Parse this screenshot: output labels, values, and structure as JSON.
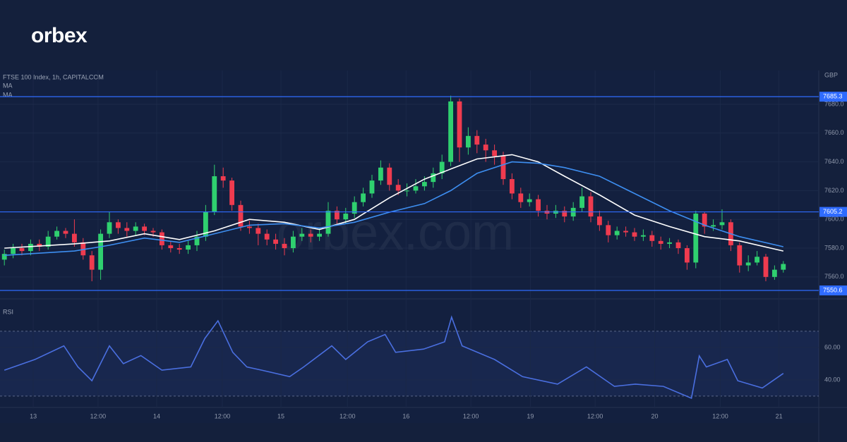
{
  "brand": {
    "logo": "orbex",
    "watermark": "orbex.com"
  },
  "chart_data": [
    {
      "type": "candlestick",
      "title": "FTSE 100 Index, 1h, CAPITALCOM",
      "currency": "GBP",
      "xlim": [
        -0.5,
        93.05
      ],
      "ylim": [
        7545.7,
        7703.5
      ],
      "yticks": [
        {
          "value": 7560,
          "label": "7560.0"
        },
        {
          "value": 7580,
          "label": "7580.0"
        },
        {
          "value": 7600,
          "label": "7600.0"
        },
        {
          "value": 7620,
          "label": "7620.0"
        },
        {
          "value": 7640,
          "label": "7640.0"
        },
        {
          "value": 7660,
          "label": "7660.0"
        },
        {
          "value": 7680,
          "label": "7680.0"
        }
      ],
      "up_color": "#2fd06f",
      "down_color": "#ef3b4f",
      "open": [
        7572,
        7576,
        7580,
        7578,
        7583,
        7581,
        7588,
        7592,
        7590,
        7584,
        7575,
        7565,
        7590,
        7598,
        7594,
        7592,
        7595,
        7592,
        7591,
        7582,
        7580,
        7579,
        7582,
        7588,
        7605,
        7630,
        7627,
        7610,
        7595,
        7594,
        7590,
        7586,
        7583,
        7580,
        7588,
        7590,
        7588,
        7590,
        7606,
        7600,
        7604,
        7612,
        7618,
        7627,
        7636,
        7624,
        7620,
        7620,
        7623,
        7626,
        7632,
        7640,
        7682,
        7650,
        7658,
        7652,
        7648,
        7644,
        7628,
        7618,
        7612,
        7614,
        7606,
        7604,
        7606,
        7602,
        7608,
        7616,
        7602,
        7596,
        7589,
        7592,
        7591,
        7588,
        7589,
        7585,
        7583,
        7584,
        7580,
        7570,
        7604,
        7595,
        7596,
        7598,
        7582,
        7568,
        7570,
        7574,
        7560,
        7565
      ],
      "high": [
        7579,
        7583,
        7583,
        7586,
        7586,
        7592,
        7595,
        7594,
        7600,
        7587,
        7578,
        7593,
        7605,
        7600,
        7598,
        7598,
        7597,
        7594,
        7593,
        7585,
        7583,
        7585,
        7592,
        7610,
        7638,
        7636,
        7629,
        7613,
        7599,
        7597,
        7593,
        7590,
        7587,
        7592,
        7594,
        7593,
        7594,
        7612,
        7609,
        7608,
        7616,
        7622,
        7631,
        7641,
        7639,
        7628,
        7625,
        7628,
        7630,
        7636,
        7645,
        7686,
        7684,
        7664,
        7662,
        7656,
        7652,
        7647,
        7632,
        7622,
        7618,
        7617,
        7610,
        7610,
        7609,
        7612,
        7622,
        7619,
        7606,
        7599,
        7595,
        7595,
        7594,
        7593,
        7592,
        7588,
        7587,
        7586,
        7582,
        7606,
        7605,
        7600,
        7607,
        7600,
        7584,
        7575,
        7578,
        7576,
        7568,
        7571
      ],
      "low": [
        7568,
        7573,
        7575,
        7575,
        7578,
        7579,
        7586,
        7587,
        7581,
        7572,
        7557,
        7558,
        7587,
        7590,
        7588,
        7589,
        7589,
        7588,
        7579,
        7577,
        7576,
        7576,
        7578,
        7585,
        7603,
        7622,
        7606,
        7592,
        7590,
        7582,
        7582,
        7579,
        7575,
        7577,
        7585,
        7584,
        7585,
        7588,
        7597,
        7597,
        7601,
        7609,
        7615,
        7624,
        7620,
        7617,
        7616,
        7618,
        7620,
        7622,
        7628,
        7637,
        7640,
        7645,
        7646,
        7640,
        7638,
        7624,
        7614,
        7608,
        7609,
        7602,
        7600,
        7601,
        7598,
        7599,
        7605,
        7598,
        7592,
        7584,
        7586,
        7588,
        7585,
        7585,
        7581,
        7579,
        7580,
        7576,
        7565,
        7566,
        7590,
        7592,
        7593,
        7578,
        7563,
        7564,
        7568,
        7557,
        7558,
        7563
      ],
      "close": [
        7576,
        7580,
        7578,
        7583,
        7581,
        7588,
        7592,
        7590,
        7584,
        7575,
        7565,
        7590,
        7598,
        7594,
        7592,
        7595,
        7592,
        7591,
        7582,
        7580,
        7579,
        7582,
        7588,
        7605,
        7630,
        7627,
        7610,
        7595,
        7594,
        7590,
        7586,
        7583,
        7580,
        7588,
        7590,
        7588,
        7590,
        7606,
        7600,
        7604,
        7612,
        7618,
        7627,
        7636,
        7624,
        7620,
        7620,
        7623,
        7626,
        7632,
        7640,
        7682,
        7650,
        7658,
        7652,
        7648,
        7644,
        7628,
        7618,
        7612,
        7614,
        7606,
        7604,
        7606,
        7602,
        7608,
        7616,
        7602,
        7596,
        7589,
        7592,
        7591,
        7588,
        7589,
        7585,
        7583,
        7584,
        7580,
        7570,
        7604,
        7595,
        7596,
        7598,
        7582,
        7568,
        7570,
        7574,
        7560,
        7565,
        7569
      ],
      "series": [
        {
          "name": "MA",
          "color": "#ffffff",
          "x": [
            0,
            8,
            12,
            16,
            20,
            24,
            28,
            32,
            36,
            40,
            44,
            48,
            51,
            54,
            58,
            61,
            64,
            68,
            72,
            76,
            80,
            84,
            89
          ],
          "values": [
            7580,
            7583,
            7585,
            7590,
            7586,
            7592,
            7600,
            7598,
            7593,
            7600,
            7615,
            7628,
            7635,
            7642,
            7645,
            7640,
            7630,
            7617,
            7603,
            7595,
            7588,
            7585,
            7578
          ]
        },
        {
          "name": "MA",
          "color": "#3d8ef0",
          "x": [
            0,
            8,
            12,
            16,
            20,
            24,
            28,
            32,
            36,
            40,
            44,
            48,
            51,
            54,
            58,
            61,
            64,
            68,
            72,
            76,
            80,
            84,
            89
          ],
          "values": [
            7575,
            7578,
            7582,
            7587,
            7584,
            7590,
            7596,
            7597,
            7594,
            7598,
            7605,
            7611,
            7620,
            7632,
            7640,
            7639,
            7636,
            7630,
            7618,
            7606,
            7596,
            7588,
            7581
          ]
        }
      ],
      "levels": [
        7685.3,
        7605.2,
        7550.6
      ],
      "level_color": "#2f6bff"
    },
    {
      "type": "line",
      "title": "RSI",
      "xlim": [
        -0.5,
        93.05
      ],
      "ylim": [
        23,
        86.5
      ],
      "yticks": [
        {
          "value": 40,
          "label": "40.00"
        },
        {
          "value": 60,
          "label": "60.00"
        }
      ],
      "bands": [
        30,
        70
      ],
      "xticks": [
        {
          "value": 3.3,
          "label": "13"
        },
        {
          "value": 10.7,
          "label": "12:00"
        },
        {
          "value": 17.4,
          "label": "14"
        },
        {
          "value": 24.9,
          "label": "12:00"
        },
        {
          "value": 31.6,
          "label": "15"
        },
        {
          "value": 39.2,
          "label": "12:00"
        },
        {
          "value": 45.9,
          "label": "16"
        },
        {
          "value": 53.3,
          "label": "12:00"
        },
        {
          "value": 60.1,
          "label": "19"
        },
        {
          "value": 67.5,
          "label": "12:00"
        },
        {
          "value": 74.3,
          "label": "20"
        },
        {
          "value": 81.8,
          "label": "12:00"
        },
        {
          "value": 88.5,
          "label": "21"
        }
      ],
      "series": [
        {
          "color": "#4a6fe0",
          "x": [
            0,
            3.5,
            6.8,
            8.4,
            10,
            12,
            13.6,
            15.6,
            18,
            21.3,
            22.9,
            24.4,
            26.1,
            27.7,
            29.4,
            32.6,
            34.2,
            37.4,
            39,
            41.5,
            43.5,
            44.7,
            47.9,
            50.3,
            51.1,
            52.3,
            56,
            59.2,
            63.2,
            66.5,
            69.7,
            72.1,
            75.3,
            78.5,
            79.4,
            80.2,
            82.6,
            83.8,
            86.6,
            89
          ],
          "values": [
            46,
            52.6,
            61,
            48,
            39.5,
            61,
            50,
            55,
            46,
            48,
            65.6,
            76.5,
            57,
            48,
            46,
            42,
            48,
            61,
            52.6,
            63.5,
            68,
            57,
            59,
            63.5,
            78.7,
            61,
            52.6,
            42,
            37.4,
            48,
            36,
            37.4,
            36,
            28.7,
            54.8,
            48,
            52.6,
            39.5,
            35,
            44
          ]
        }
      ]
    }
  ]
}
